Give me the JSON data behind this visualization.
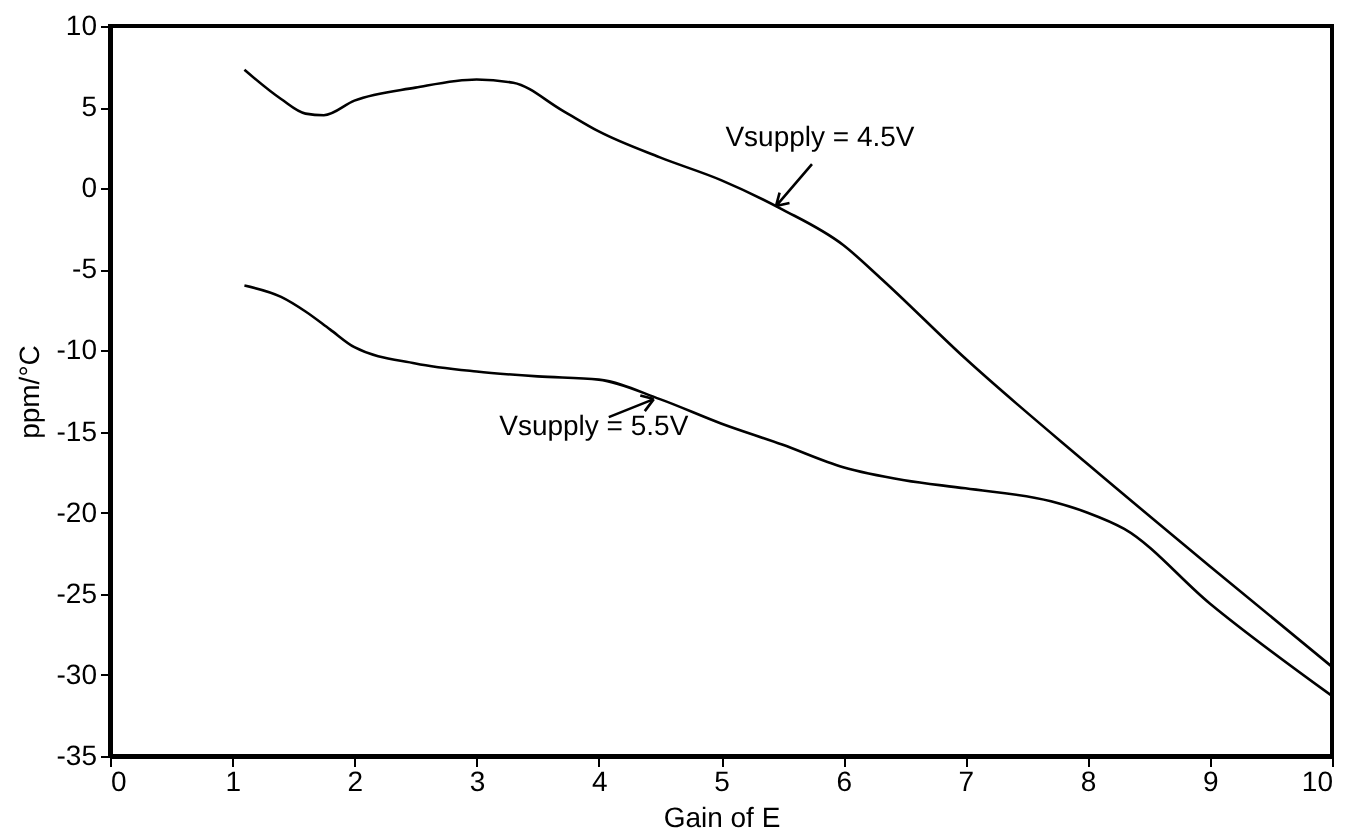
{
  "chart_data": {
    "type": "line",
    "xlabel": "Gain of E",
    "ylabel": "ppm/°C",
    "xlim": [
      0,
      10
    ],
    "ylim": [
      -35,
      10
    ],
    "xticks": [
      0,
      1,
      2,
      3,
      4,
      5,
      6,
      7,
      8,
      9,
      10
    ],
    "yticks": [
      -35,
      -30,
      -25,
      -20,
      -15,
      -10,
      -5,
      0,
      5,
      10
    ],
    "grid": false,
    "line_style": "solid",
    "series": [
      {
        "color": "#000000",
        "x": [
          1.1,
          1.4,
          1.6,
          1.75,
          2,
          2.5,
          3,
          3.3,
          3.7,
          4,
          4.5,
          5,
          5.5,
          6,
          6.3,
          7,
          8,
          9,
          10
        ],
        "values": [
          7.3,
          5.5,
          4.6,
          4.5,
          5.4,
          6.2,
          6.7,
          6.5,
          4.8,
          3.5,
          1.9,
          0.5,
          -1.3,
          -3.5,
          -5.5,
          -10.5,
          -17,
          -23.3,
          -29.5
        ]
      },
      {
        "color": "#000000",
        "x": [
          1.1,
          1.4,
          1.6,
          1.8,
          2,
          2.5,
          3,
          3.5,
          4,
          4.5,
          5,
          5.5,
          6,
          6.5,
          7,
          7.7,
          8,
          8.3,
          9,
          10
        ],
        "values": [
          -6,
          -6.7,
          -7.6,
          -8.7,
          -9.8,
          -10.8,
          -11.3,
          -11.6,
          -11.8,
          -13,
          -14.5,
          -15.8,
          -17.2,
          -18,
          -18.5,
          -19.3,
          -20,
          -21,
          -25.6,
          -31.3
        ]
      }
    ],
    "annotations": [
      {
        "text": "Vsupply = 4.5V",
        "x": 5.45,
        "y": -1.1
      },
      {
        "text": "Vsupply = 5.5V",
        "x": 4.45,
        "y": -13
      }
    ]
  }
}
